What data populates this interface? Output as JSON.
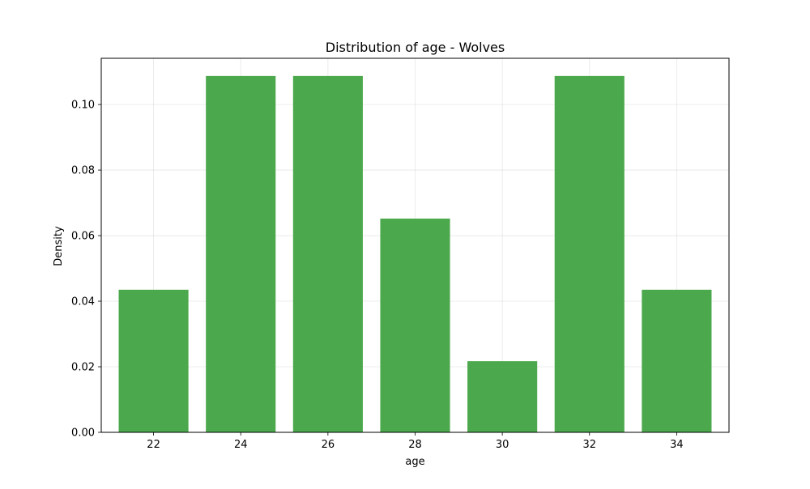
{
  "chart_data": {
    "type": "bar",
    "title": "Distribution of age - Wolves",
    "xlabel": "age",
    "ylabel": "Density",
    "categories": [
      "22",
      "24",
      "26",
      "28",
      "30",
      "32",
      "34"
    ],
    "x": [
      22,
      24,
      26,
      28,
      30,
      32,
      34
    ],
    "bin_width": 1.6,
    "values": [
      0.0435,
      0.1087,
      0.1087,
      0.0652,
      0.0217,
      0.1087,
      0.0435
    ],
    "xlim": [
      20.8,
      35.2
    ],
    "ylim": [
      0,
      0.1141
    ],
    "yticks": [
      0.0,
      0.02,
      0.04,
      0.06,
      0.08,
      0.1
    ],
    "ytick_labels": [
      "0.00",
      "0.02",
      "0.04",
      "0.06",
      "0.08",
      "0.10"
    ],
    "grid": true,
    "bar_color": "#4ca84c",
    "bar_opacity": 1
  }
}
